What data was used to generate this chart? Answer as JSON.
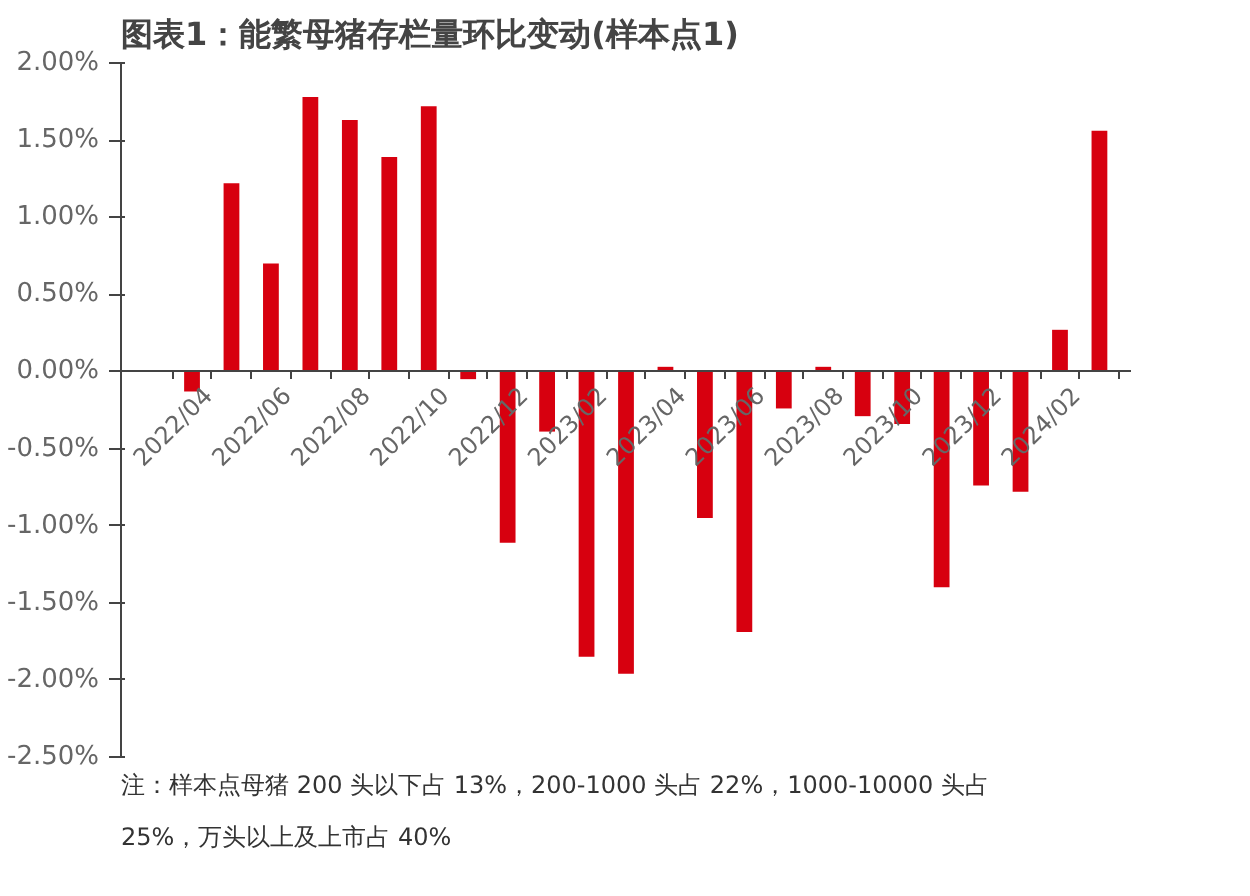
{
  "chart_data": {
    "type": "bar",
    "title": "图表1：能繁母猪存栏量环比变动(样本点1)",
    "categories": [
      "2022/04",
      null,
      "2022/06",
      null,
      "2022/08",
      null,
      "2022/10",
      null,
      "2022/12",
      null,
      "2023/02",
      null,
      "2023/04",
      null,
      "2023/06",
      null,
      "2023/08",
      null,
      "2023/10",
      null,
      "2023/12",
      null,
      "2024/02",
      null
    ],
    "values": [
      -0.13,
      1.22,
      0.7,
      1.78,
      1.63,
      1.39,
      1.72,
      -0.05,
      -1.11,
      -0.39,
      -1.85,
      -1.96,
      0.03,
      -0.95,
      -1.69,
      -0.24,
      0.03,
      -0.29,
      -0.34,
      -1.4,
      -0.74,
      -0.78,
      0.27,
      1.56
    ],
    "color": "#d7000f",
    "ylim": [
      -2.5,
      2.0
    ],
    "yticks": [
      {
        "value": -2.5,
        "label": "-2.50%"
      },
      {
        "value": -2.0,
        "label": "-2.00%"
      },
      {
        "value": -1.5,
        "label": "-1.50%"
      },
      {
        "value": -1.0,
        "label": "-1.00%"
      },
      {
        "value": -0.5,
        "label": "-0.50%"
      },
      {
        "value": 0,
        "label": "0.00%"
      },
      {
        "value": 0.5,
        "label": "0.50%"
      },
      {
        "value": 1.0,
        "label": "1.00%"
      },
      {
        "value": 1.5,
        "label": "1.50%"
      },
      {
        "value": 2.0,
        "label": "2.00%"
      }
    ],
    "grid": false,
    "annotations": [
      "注：样本点母猪 200 头以下占 13%，200-1000 头占 22%，1000-10000 头占25%，万头以上及上市占 40%"
    ]
  }
}
